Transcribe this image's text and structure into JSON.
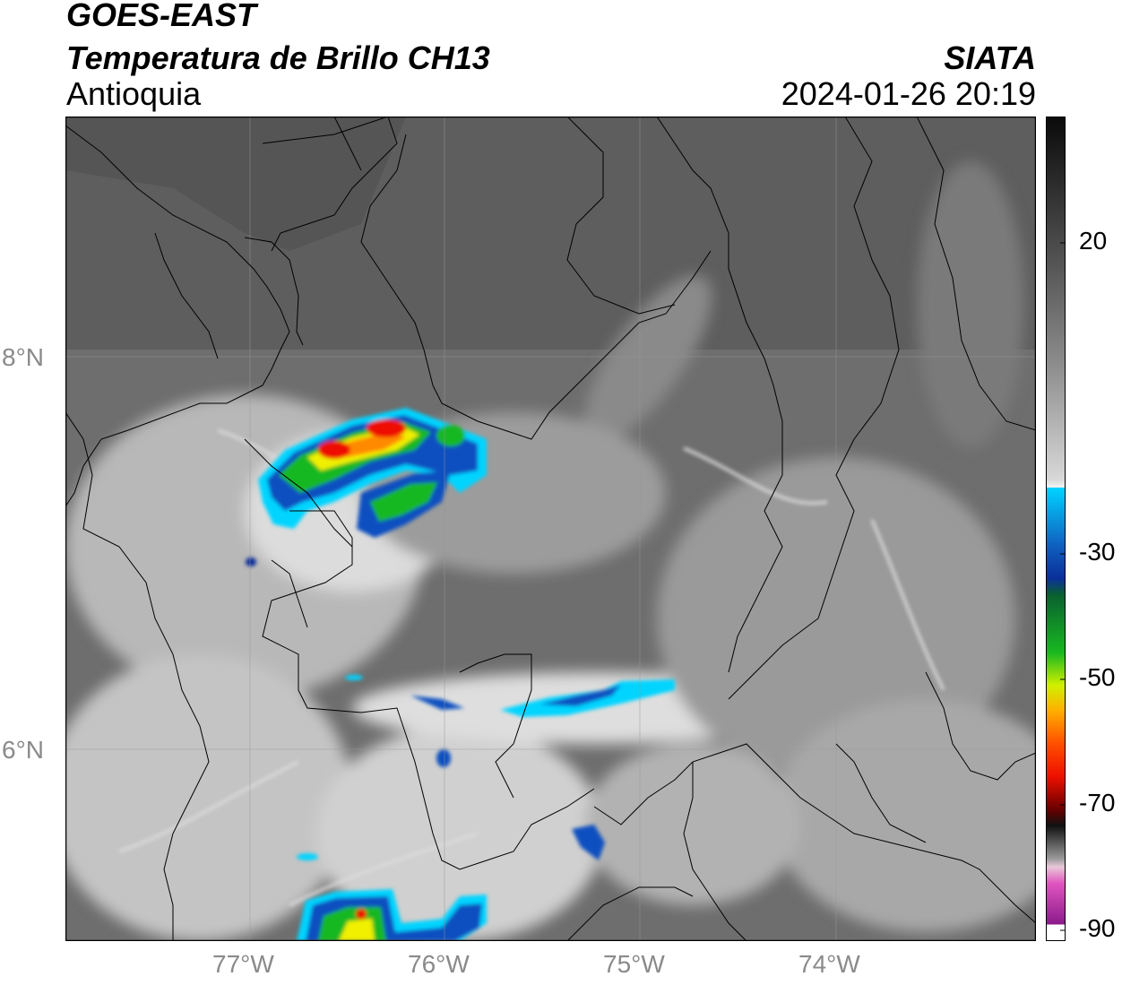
{
  "header": {
    "line1": "GOES-EAST",
    "line2": "Temperatura de Brillo CH13",
    "line3": "Antioquia",
    "org": "SIATA",
    "timestamp": "2024-01-26 20:19"
  },
  "map": {
    "lon_labels": [
      "77°W",
      "76°W",
      "75°W",
      "74°W"
    ],
    "lat_labels": [
      "8°N",
      "6°N"
    ],
    "basemap_color": "#6a6a6a"
  },
  "colorbar": {
    "tick_labels": [
      "20",
      "-30",
      "-50",
      "-70",
      "-90"
    ],
    "colors": {
      "warm_dark": "#111111",
      "grey_mid": "#8c8c8c",
      "white": "#f4f4f4",
      "cyan": "#00d4ff",
      "blue": "#0a2f9a",
      "green": "#18b820",
      "yellow": "#f0f000",
      "orange": "#ff8a00",
      "red": "#ee1000",
      "darkred": "#6a0000",
      "pink": "#e055c0",
      "purple": "#8a1a8a"
    }
  }
}
